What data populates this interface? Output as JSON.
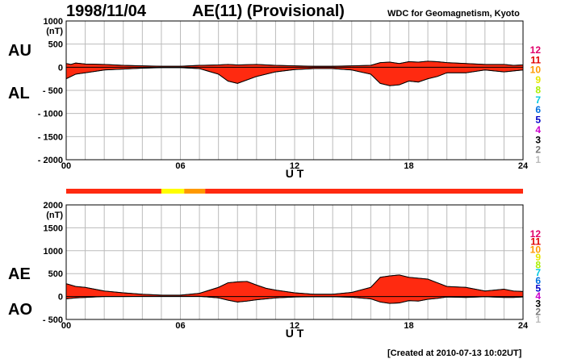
{
  "header": {
    "date": "1998/11/04",
    "title": "AE(11) (Provisional)",
    "source": "WDC for Geomagnetism, Kyoto",
    "created": "[Created at 2010-07-13 10:02UT]"
  },
  "colors": {
    "fill": "#ff2a10",
    "outline": "#000000",
    "grid": "#bbbbbb",
    "stripe": "#ff2a10"
  },
  "chart_data": [
    {
      "type": "area",
      "labels": {
        "upper": "AU",
        "lower": "AL",
        "unit": "(nT)",
        "xlabel": "U T"
      },
      "ylim": [
        -2000,
        1000
      ],
      "yticks": [
        1000,
        500,
        0,
        -500,
        -1000,
        -1500,
        -2000
      ],
      "ytick_labels": [
        "1000",
        "500",
        "0",
        "- 500",
        "- 1000",
        "- 1500",
        "- 2000"
      ],
      "xlim": [
        0,
        24
      ],
      "xticks": [
        0,
        6,
        12,
        18,
        24
      ],
      "xtick_labels": [
        "00",
        "06",
        "12",
        "18",
        "24"
      ],
      "grid": true,
      "series": [
        {
          "name": "AU",
          "x": [
            0,
            0.25,
            0.5,
            1,
            2,
            3,
            4,
            5,
            6,
            7,
            8,
            8.5,
            9,
            10,
            11,
            12,
            13,
            14,
            15,
            16,
            16.5,
            17,
            17.5,
            18,
            18.5,
            19,
            19.5,
            20,
            21,
            22,
            23,
            23.5,
            24
          ],
          "values": [
            80,
            60,
            90,
            70,
            60,
            40,
            30,
            20,
            20,
            40,
            50,
            60,
            50,
            60,
            40,
            30,
            20,
            20,
            30,
            40,
            100,
            110,
            80,
            120,
            110,
            130,
            120,
            100,
            80,
            60,
            60,
            40,
            50
          ]
        },
        {
          "name": "AL",
          "x": [
            0,
            0.25,
            0.5,
            1,
            2,
            3,
            4,
            5,
            6,
            7,
            8,
            8.5,
            9,
            10,
            11,
            12,
            13,
            14,
            15,
            16,
            16.5,
            17,
            17.5,
            18,
            18.5,
            19,
            19.5,
            20,
            21,
            22,
            23,
            23.5,
            24
          ],
          "values": [
            -250,
            -200,
            -150,
            -120,
            -60,
            -40,
            -20,
            -10,
            -10,
            -30,
            -150,
            -300,
            -350,
            -200,
            -100,
            -50,
            -30,
            -30,
            -60,
            -150,
            -350,
            -400,
            -380,
            -300,
            -320,
            -250,
            -200,
            -120,
            -120,
            -60,
            -100,
            -80,
            -60
          ]
        }
      ]
    },
    {
      "type": "area",
      "labels": {
        "upper": "AE",
        "lower": "AO",
        "unit": "(nT)",
        "xlabel": "U T"
      },
      "ylim": [
        -500,
        2000
      ],
      "yticks": [
        2000,
        1500,
        1000,
        500,
        0,
        -500
      ],
      "ytick_labels": [
        "2000",
        "1500",
        "1000",
        "500",
        "0",
        "- 500"
      ],
      "xlim": [
        0,
        24
      ],
      "xticks": [
        0,
        6,
        12,
        18,
        24
      ],
      "xtick_labels": [
        "00",
        "06",
        "12",
        "18",
        "24"
      ],
      "grid": true,
      "series": [
        {
          "name": "AE",
          "x": [
            0,
            0.25,
            0.5,
            1,
            2,
            3,
            4,
            5,
            6,
            7,
            8,
            8.5,
            9,
            9.5,
            10,
            10.5,
            11,
            12,
            13,
            14,
            15,
            16,
            16.5,
            17,
            17.5,
            18,
            18.5,
            19,
            19.5,
            20,
            21,
            22,
            23,
            23.5,
            24
          ],
          "values": [
            280,
            250,
            220,
            200,
            120,
            80,
            50,
            30,
            30,
            70,
            200,
            300,
            320,
            330,
            250,
            180,
            140,
            80,
            50,
            50,
            90,
            200,
            420,
            450,
            470,
            420,
            400,
            380,
            300,
            220,
            200,
            120,
            160,
            120,
            110
          ]
        },
        {
          "name": "AO",
          "x": [
            0,
            0.25,
            0.5,
            1,
            2,
            3,
            4,
            5,
            6,
            7,
            8,
            8.5,
            9,
            9.5,
            10,
            10.5,
            11,
            12,
            13,
            14,
            15,
            16,
            16.5,
            17,
            17.5,
            18,
            18.5,
            19,
            19.5,
            20,
            21,
            22,
            23,
            23.5,
            24
          ],
          "values": [
            -50,
            -40,
            -30,
            -20,
            0,
            0,
            5,
            5,
            5,
            5,
            -30,
            -80,
            -120,
            -100,
            -70,
            -50,
            -30,
            -10,
            -5,
            -5,
            -15,
            -50,
            -120,
            -150,
            -140,
            -90,
            -100,
            -60,
            -40,
            -10,
            -20,
            -5,
            -20,
            -20,
            -10
          ]
        }
      ]
    }
  ],
  "legend": {
    "labels": [
      "12",
      "11",
      "10",
      "9",
      "8",
      "7",
      "6",
      "5",
      "4",
      "3",
      "2",
      "1"
    ],
    "colors": [
      "#e0006a",
      "#e00000",
      "#ff9900",
      "#e6e600",
      "#aaee00",
      "#00c8e0",
      "#0070e0",
      "#0000c8",
      "#cc00cc",
      "#000000",
      "#777777",
      "#bbbbbb"
    ]
  },
  "station_bar": {
    "segments": [
      {
        "from": 0,
        "to": 5,
        "color": "#ff2a10"
      },
      {
        "from": 5,
        "to": 6.2,
        "color": "#ffff00"
      },
      {
        "from": 6.2,
        "to": 7.3,
        "color": "#ff9900"
      },
      {
        "from": 7.3,
        "to": 24,
        "color": "#ff2a10"
      }
    ]
  }
}
